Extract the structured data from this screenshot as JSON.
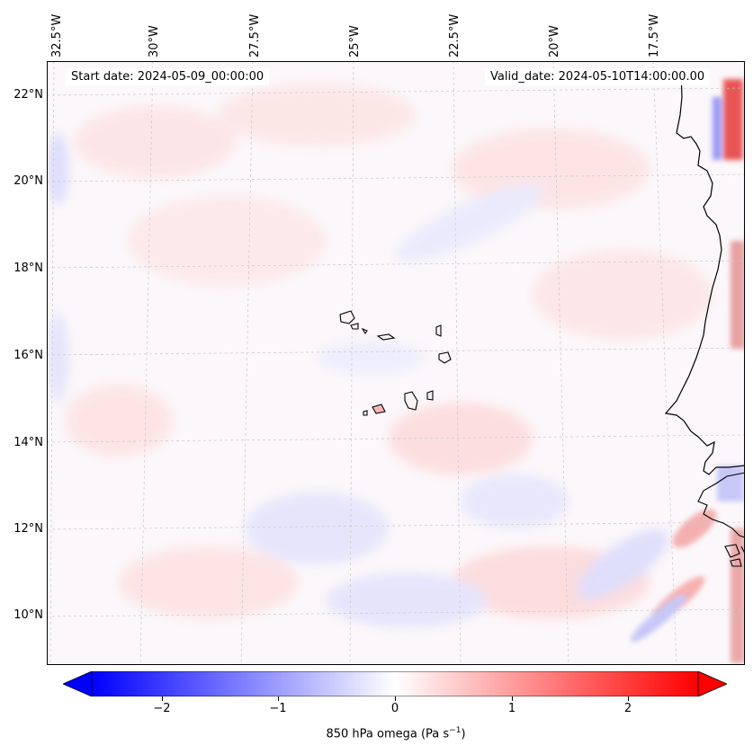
{
  "map": {
    "variable": "850 hPa omega",
    "region": "Cape Verde / West Africa coast",
    "lon_labels": [
      "32.5°W",
      "30°W",
      "27.5°W",
      "25°W",
      "22.5°W",
      "20°W",
      "17.5°W"
    ],
    "lat_labels": [
      "22°N",
      "20°N",
      "18°N",
      "16°N",
      "14°N",
      "12°N",
      "10°N"
    ],
    "start_date": "Start date: 2024-05-09_00:00:00",
    "valid_date": "Valid_date: 2024-05-10T14:00:00.00"
  },
  "colorbar": {
    "title_main": "850 hPa omega (Pa s",
    "title_sup": "−1",
    "title_end": ")",
    "tick_labels": [
      "−2",
      "−1",
      "0",
      "1",
      "2"
    ],
    "range": [
      -2.6,
      2.6
    ],
    "ticks": [
      -2,
      -1,
      0,
      1,
      2
    ],
    "negative_color": "#0000ff",
    "positive_color": "#ff0000"
  }
}
